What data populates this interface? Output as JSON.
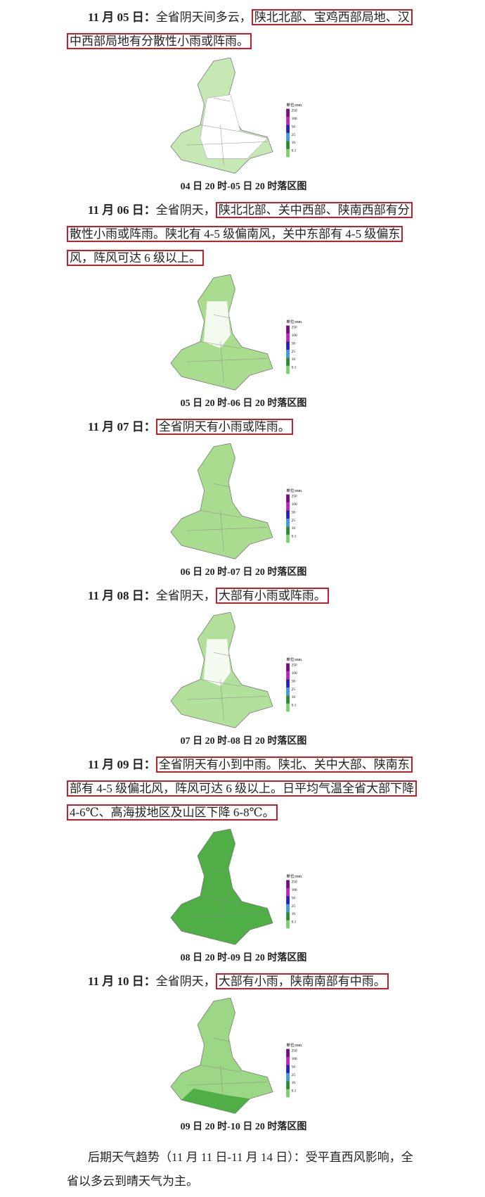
{
  "days": [
    {
      "date": "11 月 05 日：",
      "text": "全省阴天间多云，",
      "highlight": "陕北北部、宝鸡西部局地、汉中西部局地有分散性小雨或阵雨。",
      "caption": "04 日 20 时-05 日 20 时落区图"
    },
    {
      "date": "11 月 06 日：",
      "text": "全省阴天，",
      "highlight": "陕北北部、关中西部、陕南西部有分散性小雨或阵雨。陕北有 4-5 级偏南风，关中东部有 4-5 级偏东风，阵风可达 6 级以上。",
      "caption": "05 日 20 时-06 日 20 时落区图"
    },
    {
      "date": "11 月 07 日：",
      "highlight": "全省阴天有小雨或阵雨。",
      "caption": "06 日 20 时-07 日 20 时落区图"
    },
    {
      "date": "11 月 08 日：",
      "text": "全省阴天，",
      "highlight": "大部有小雨或阵雨。",
      "caption": "07 日 20 时-08 日 20 时落区图"
    },
    {
      "date": "11 月 09 日：",
      "highlight": "全省阴天有小到中雨。陕北、关中大部、陕南东部有 4-5 级偏北风，阵风可达 6 级以上。日平均气温全省大部下降 4-6℃、高海拔地区及山区下降 6-8℃。",
      "caption": "08 日 20 时-09 日 20 时落区图"
    },
    {
      "date": "11 月 10 日：",
      "text": "全省阴天，",
      "highlight": "大部有小雨，陕南南部有中雨。",
      "caption": "09 日 20 时-10 日 20 时落区图"
    }
  ],
  "legend_unit": "单位:mm",
  "legend_ticks": [
    "250",
    "100",
    "50",
    "25",
    "10",
    "0.1"
  ],
  "footer": {
    "label": "后期天气趋势（11 月 11 日-11 月 14 日）：",
    "text": "受平直西风影响，全省以多云到晴天气为主。"
  }
}
